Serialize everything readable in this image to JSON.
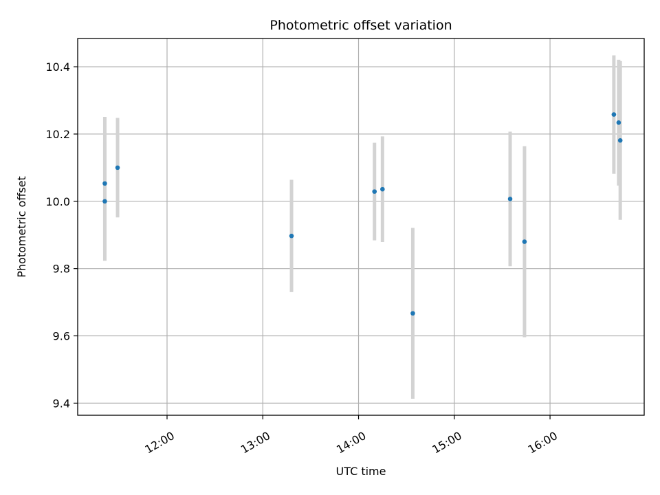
{
  "chart_data": {
    "type": "scatter",
    "title": "Photometric offset variation",
    "xlabel": "UTC time",
    "ylabel": "Photometric offset",
    "x_ticks": [
      "12:00",
      "13:00",
      "14:00",
      "15:00",
      "16:00"
    ],
    "y_ticks": [
      "9.4",
      "9.6",
      "9.8",
      "10.0",
      "10.2",
      "10.4"
    ],
    "xlim": [
      "11:04",
      "16:59"
    ],
    "ylim": [
      9.364,
      10.484
    ],
    "grid": true,
    "colors": {
      "point": "#1f77b4",
      "errorbar": "#d3d3d3",
      "grid": "#b0b0b0"
    },
    "series": [
      {
        "points": [
          {
            "x": "11:21",
            "y": 10.0,
            "err": 0.177
          },
          {
            "x": "11:21",
            "y": 10.053,
            "err": 0.198
          },
          {
            "x": "11:29",
            "y": 10.1,
            "err": 0.148
          },
          {
            "x": "13:18",
            "y": 9.897,
            "err": 0.167
          },
          {
            "x": "14:10",
            "y": 10.029,
            "err": 0.145
          },
          {
            "x": "14:15",
            "y": 10.036,
            "err": 0.157
          },
          {
            "x": "14:34",
            "y": 9.667,
            "err": 0.254
          },
          {
            "x": "15:35",
            "y": 10.007,
            "err": 0.2
          },
          {
            "x": "15:44",
            "y": 9.88,
            "err": 0.284
          },
          {
            "x": "16:40",
            "y": 10.258,
            "err": 0.176
          },
          {
            "x": "16:43",
            "y": 10.234,
            "err": 0.187
          },
          {
            "x": "16:44",
            "y": 10.181,
            "err": 0.236
          }
        ]
      }
    ]
  }
}
